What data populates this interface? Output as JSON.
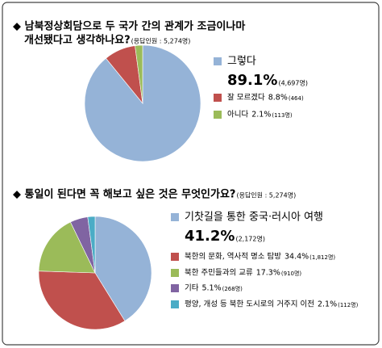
{
  "chart_data": [
    {
      "type": "pie",
      "title": [
        "◆ 남북정상회담으로 두 국가 간의 관계가 조금이나마",
        "개선됐다고 생각하나요?"
      ],
      "subtitle": "(응답인원 : 5,274명)",
      "categories": [
        "그렇다",
        "잘 모르겠다",
        "아니다"
      ],
      "values": [
        89.1,
        8.8,
        2.1
      ],
      "value_labels": [
        "89.1%",
        "8.8%",
        "2.1%"
      ],
      "count_labels": [
        "(4,697명)",
        "(464)",
        "(113명)"
      ],
      "colors": [
        "#95b3d7",
        "#c0504d",
        "#9bbb59"
      ]
    },
    {
      "type": "pie",
      "title": [
        "◆ 통일이 된다면 꼭 해보고 싶은 것은 무엇인가요?"
      ],
      "subtitle": "(응답인원 : 5,274명)",
      "categories": [
        "기찻길을 통한 중국·러시아 여행",
        "북한의 문화, 역사적 명소 탐방",
        "북한 주민들과의 교류",
        "기타",
        "평양, 개성 등 북한 도시로의 거주지 이전"
      ],
      "values": [
        41.2,
        34.4,
        17.3,
        5.1,
        2.1
      ],
      "value_labels": [
        "41.2%",
        "34.4%",
        "17.3%",
        "5.1%",
        "2.1%"
      ],
      "count_labels": [
        "(2,172명)",
        "(1,812명)",
        "(910명)",
        "(268명)",
        "(112명)"
      ],
      "colors": [
        "#95b3d7",
        "#c0504d",
        "#9bbb59",
        "#8064a2",
        "#4bacc6"
      ]
    }
  ]
}
